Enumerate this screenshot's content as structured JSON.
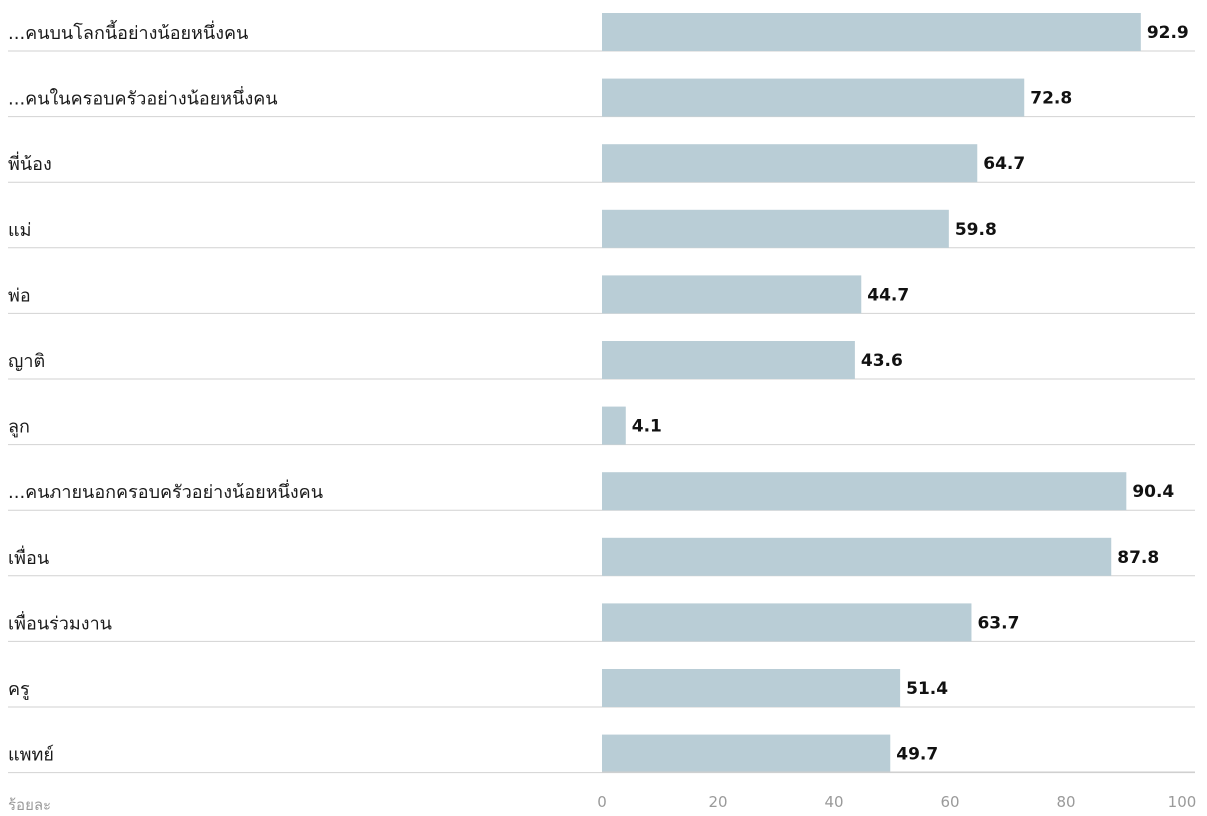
{
  "chart_data": {
    "type": "bar",
    "orientation": "horizontal",
    "categories": [
      "...คนบนโลกนี้อย่างน้อยหนึ่งคน",
      "...คนในครอบครัวอย่างน้อยหนึ่งคน",
      "พี่น้อง",
      "แม่",
      "พ่อ",
      "ญาติ",
      "ลูก",
      "...คนภายนอกครอบครัวอย่างน้อยหนึ่งคน",
      "เพื่อน",
      "เพื่อนร่วมงาน",
      "ครู",
      "แพทย์"
    ],
    "values": [
      92.9,
      72.8,
      64.7,
      59.8,
      44.7,
      43.6,
      4.1,
      90.4,
      87.8,
      63.7,
      51.4,
      49.7
    ],
    "value_labels": [
      "92.9",
      "72.8",
      "64.7",
      "59.8",
      "44.7",
      "43.6",
      "4.1",
      "90.4",
      "87.8",
      "63.7",
      "51.4",
      "49.7"
    ],
    "xlim": [
      0,
      100
    ],
    "xticks": [
      0,
      20,
      40,
      60,
      80,
      100
    ],
    "xtick_labels": [
      "0",
      "20",
      "40",
      "60",
      "80",
      "100"
    ],
    "unit_label": "ร้อยละ",
    "grid": false,
    "colors": {
      "bar": "#b9cdd6",
      "divider": "#d2d2d2",
      "axis": "#cfcfcf"
    }
  }
}
